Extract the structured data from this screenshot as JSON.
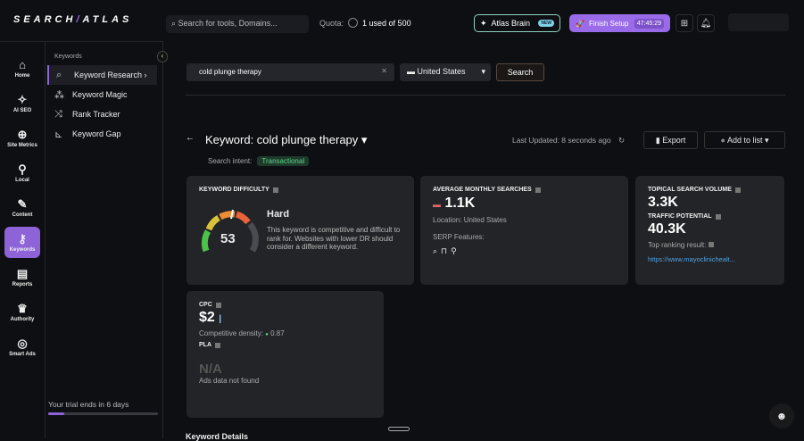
{
  "brand": {
    "logo_left": "SEARCH",
    "logo_sep": "/",
    "logo_right": "ATLAS"
  },
  "header": {
    "search_placeholder": "Search for tools, Domains...",
    "quota_label": "Quota:",
    "quota_value": "1 used of 500",
    "atlas_brain": "Atlas Brain",
    "new_badge": "NEW",
    "finish_setup": "Finish Setup",
    "timer": "47:45:29"
  },
  "rail": [
    {
      "icon": "⌂",
      "label": "Home"
    },
    {
      "icon": "✧",
      "label": "AI SEO"
    },
    {
      "icon": "⊕",
      "label": "Site Metrics"
    },
    {
      "icon": "⚲",
      "label": "Local"
    },
    {
      "icon": "✎",
      "label": "Content"
    },
    {
      "icon": "⚷",
      "label": "Keywords",
      "active": true
    },
    {
      "icon": "▤",
      "label": "Reports"
    },
    {
      "icon": "♛",
      "label": "Authority"
    },
    {
      "icon": "◎",
      "label": "Smart Ads"
    }
  ],
  "subnav": {
    "heading": "Keywords",
    "items": [
      {
        "icon": "⌕",
        "label": "Keyword Research ›"
      },
      {
        "icon": "⁂",
        "label": "Keyword Magic"
      },
      {
        "icon": "⤨",
        "label": "Rank Tracker"
      },
      {
        "icon": "⊾",
        "label": "Keyword Gap"
      }
    ]
  },
  "trial": {
    "text": "Your trial ends in 6 days",
    "progress_pct": 15
  },
  "search": {
    "keyword": "cold plunge therapy",
    "country": "United States",
    "button": "Search"
  },
  "page": {
    "title": "Keyword: cold plunge therapy ▾",
    "intent_label": "Search intent:",
    "intent": "Transactional",
    "last_updated": "Last Updated: 8 seconds ago",
    "export": "Export",
    "add_to_list": "Add to list ▾"
  },
  "kd": {
    "label": "KEYWORD DIFFICULTY",
    "value": "53",
    "level": "Hard",
    "desc": "This keyword is competitive and difficult to rank for. Websites with lower DR should consider a different keyword."
  },
  "ams": {
    "label": "AVERAGE MONTHLY SEARCHES",
    "value": "1.1K",
    "location": "Location: United States",
    "serp": "SERP Features:"
  },
  "tsv": {
    "label": "TOPICAL SEARCH VOLUME",
    "value": "3.3K",
    "tp_label": "TRAFFIC POTENTIAL",
    "tp_value": "40.3K",
    "top_label": "Top ranking result:",
    "top_url": "https://www.mayoclinichealt..."
  },
  "cpc": {
    "label": "CPC",
    "value": "$2",
    "density_label": "Competitive density:",
    "density": "0.87",
    "pla_label": "PLA",
    "pla_value": "N/A",
    "pla_note": "Ads data not found"
  },
  "section": {
    "keyword_details": "Keyword Details"
  },
  "colors": {
    "accent": "#8e63d8",
    "intent": "#5fd38a",
    "link": "#4ea3e0"
  }
}
